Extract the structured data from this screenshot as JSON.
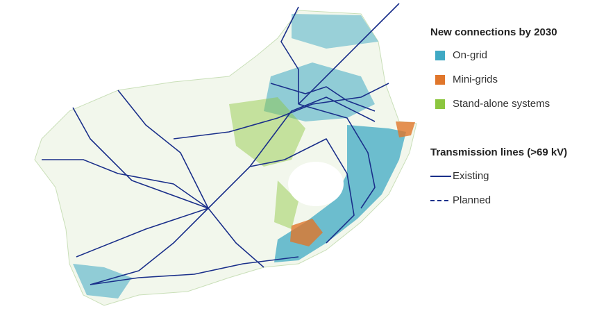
{
  "legend": {
    "connections": {
      "title": "New connections by 2030",
      "items": [
        {
          "label": "On-grid",
          "color": "#3fa9c4"
        },
        {
          "label": "Mini-grids",
          "color": "#e0762b"
        },
        {
          "label": "Stand-alone systems",
          "color": "#8cc63f"
        }
      ]
    },
    "transmission": {
      "title": "Transmission lines (>69 kV)",
      "items": [
        {
          "label": "Existing",
          "color": "#1a2f8a",
          "dash": false
        },
        {
          "label": "Planned",
          "color": "#1a2f8a",
          "dash": true
        }
      ]
    }
  }
}
